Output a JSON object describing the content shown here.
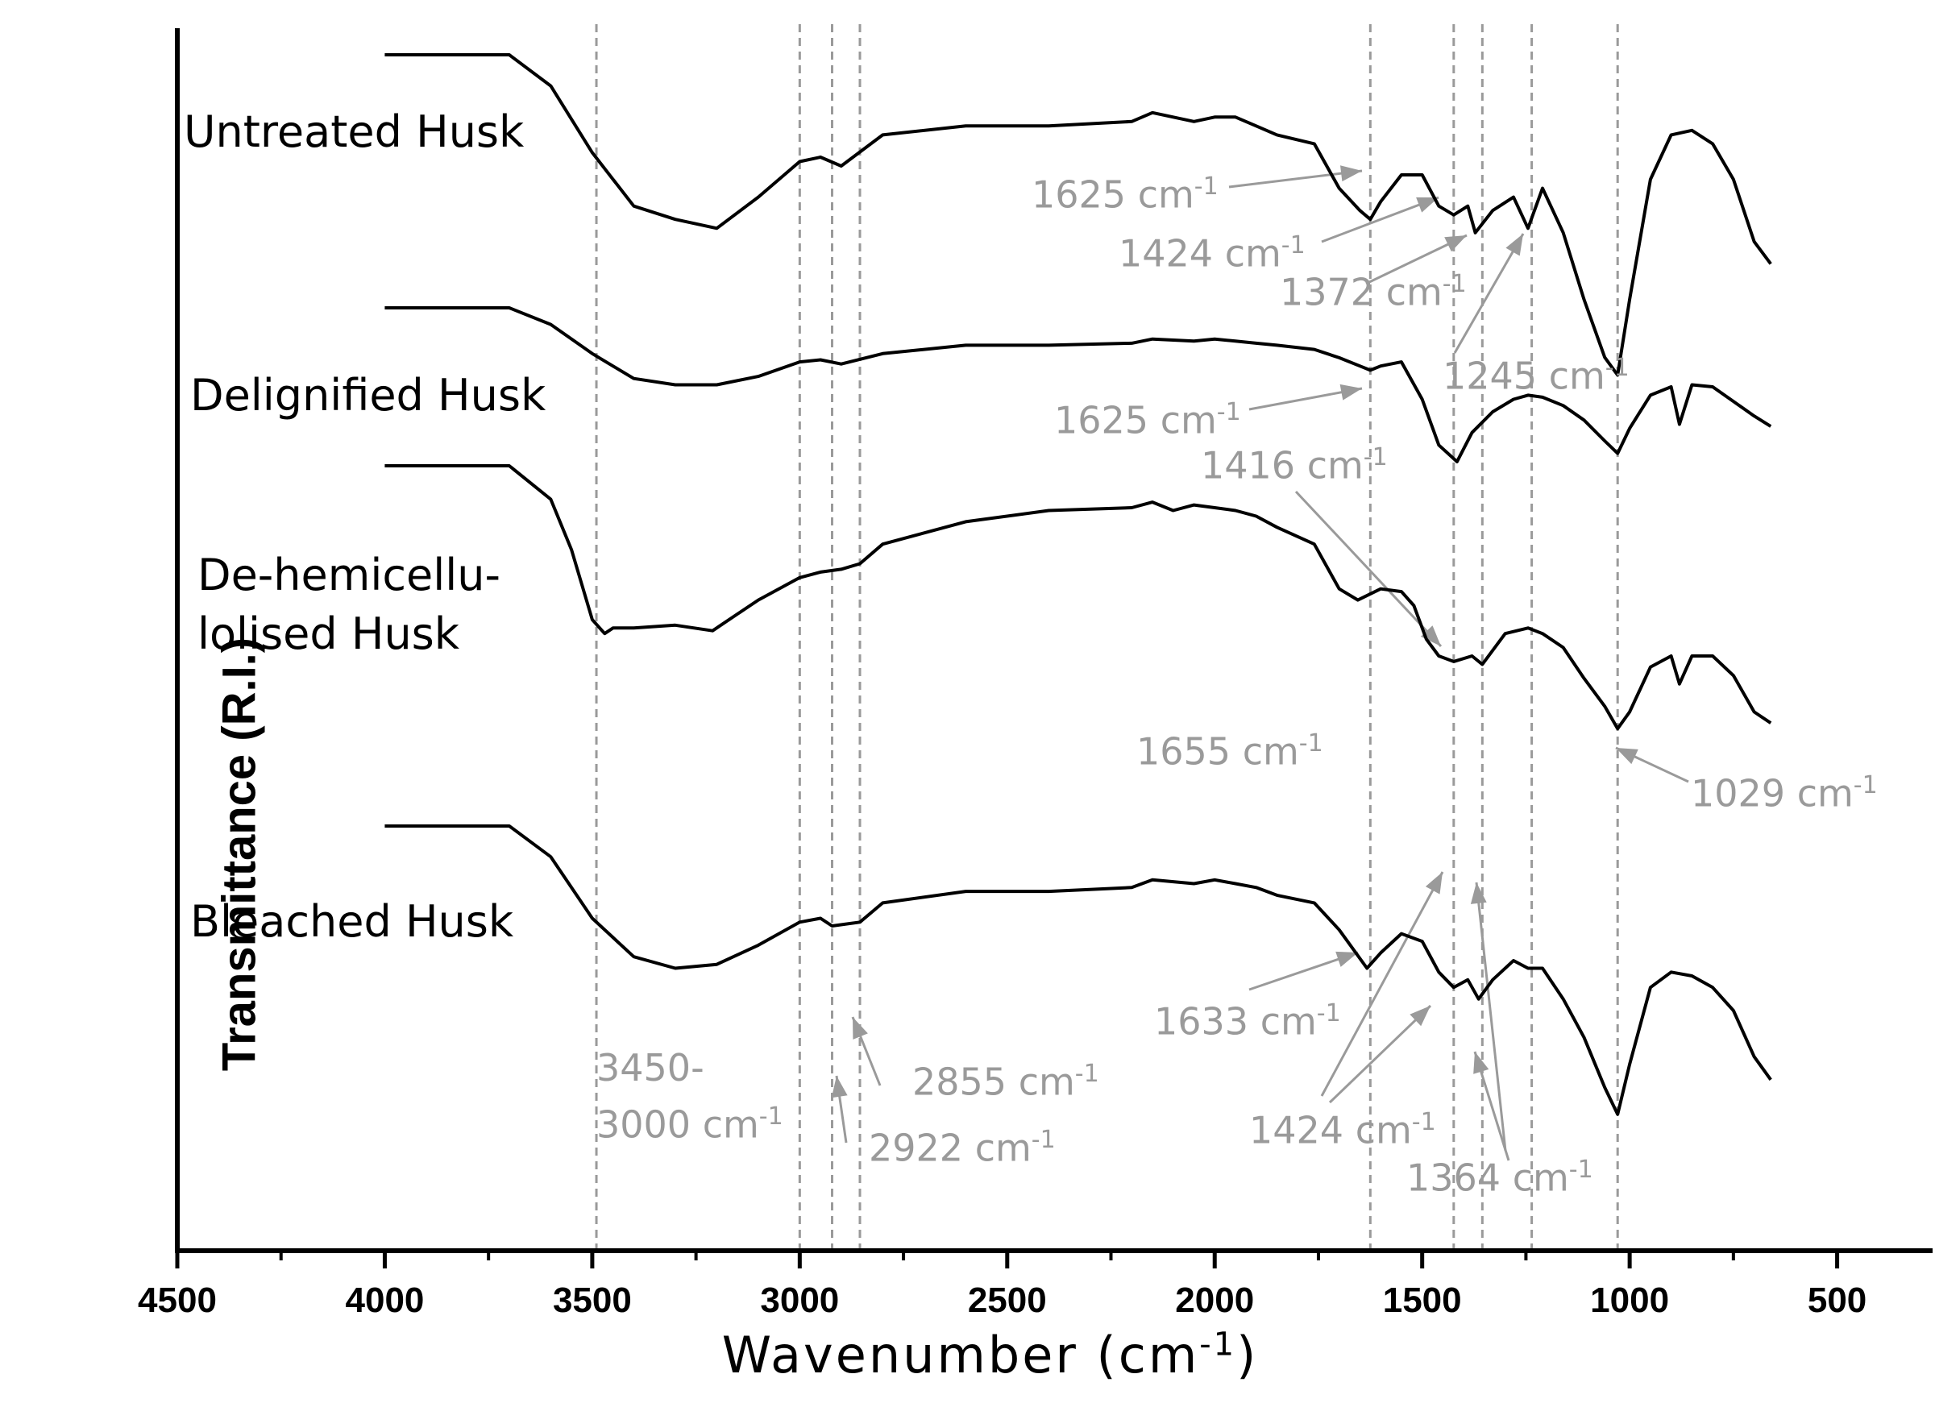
{
  "chart_data": {
    "type": "line",
    "title": "",
    "xlabel": "Wavenumber (cm",
    "xlabel_sup": "-1",
    "xlabel_close": ")",
    "ylabel": "Transmittance (R.I.)",
    "xlim": [
      4500,
      270
    ],
    "x_reversed": true,
    "x_ticks": [
      4500,
      4000,
      3500,
      3000,
      2500,
      2000,
      1500,
      1000,
      500
    ],
    "x_tick_labels": [
      "4500",
      "4000",
      "3500",
      "3000",
      "2500",
      "2000",
      "1500",
      "1000",
      "500"
    ],
    "y_ticks_shown": false,
    "grid": false,
    "legend": "none",
    "marker_lines": [
      3490,
      3000,
      2922,
      2855,
      1625,
      1424,
      1355,
      1236,
      1029
    ],
    "series": [
      {
        "name": "Untreated Husk",
        "x": [
          4000,
          3800,
          3700,
          3600,
          3500,
          3400,
          3300,
          3200,
          3100,
          3000,
          2950,
          2900,
          2800,
          2600,
          2400,
          2200,
          2150,
          2050,
          2000,
          1950,
          1900,
          1850,
          1760,
          1700,
          1650,
          1625,
          1600,
          1550,
          1500,
          1460,
          1424,
          1390,
          1372,
          1330,
          1280,
          1245,
          1210,
          1160,
          1110,
          1060,
          1029,
          1000,
          950,
          900,
          850,
          800,
          750,
          700,
          660
        ],
        "y": [
          100,
          100,
          100,
          93,
          78,
          66,
          63,
          61,
          68,
          76,
          77,
          75,
          82,
          84,
          84,
          85,
          87,
          85,
          86,
          86,
          84,
          82,
          80,
          70,
          65,
          63,
          67,
          73,
          73,
          66,
          64,
          66,
          60,
          65,
          68,
          61,
          70,
          60,
          45,
          32,
          28,
          45,
          72,
          82,
          83,
          80,
          72,
          58,
          53
        ]
      },
      {
        "name": "Delignified Husk",
        "x": [
          4000,
          3800,
          3700,
          3600,
          3500,
          3400,
          3300,
          3200,
          3100,
          3000,
          2950,
          2900,
          2800,
          2600,
          2400,
          2200,
          2150,
          2050,
          2000,
          1950,
          1900,
          1850,
          1760,
          1700,
          1650,
          1625,
          1600,
          1550,
          1500,
          1460,
          1416,
          1380,
          1330,
          1280,
          1245,
          1210,
          1160,
          1110,
          1060,
          1029,
          1000,
          950,
          900,
          880,
          850,
          800,
          750,
          700,
          660
        ],
        "y": [
          100,
          100,
          100,
          92,
          78,
          66,
          63,
          63,
          67,
          74,
          75,
          73,
          78,
          82,
          82,
          83,
          85,
          84,
          85,
          84,
          83,
          82,
          80,
          76,
          72,
          70,
          72,
          74,
          56,
          34,
          26,
          40,
          50,
          56,
          58,
          57,
          53,
          46,
          36,
          30,
          42,
          58,
          62,
          44,
          63,
          62,
          55,
          48,
          43
        ]
      },
      {
        "name": "De-hemicellulolised Husk",
        "x": [
          4000,
          3800,
          3700,
          3600,
          3550,
          3500,
          3470,
          3450,
          3400,
          3300,
          3210,
          3150,
          3100,
          3000,
          2950,
          2900,
          2855,
          2800,
          2600,
          2400,
          2200,
          2150,
          2100,
          2050,
          2000,
          1950,
          1900,
          1850,
          1760,
          1700,
          1655,
          1600,
          1550,
          1520,
          1490,
          1460,
          1424,
          1380,
          1355,
          1300,
          1245,
          1210,
          1160,
          1110,
          1060,
          1029,
          1000,
          950,
          900,
          880,
          850,
          800,
          750,
          700,
          660
        ],
        "y": [
          100,
          100,
          100,
          88,
          70,
          45,
          40,
          42,
          42,
          43,
          41,
          47,
          52,
          60,
          62,
          63,
          65,
          72,
          80,
          84,
          85,
          87,
          84,
          86,
          85,
          84,
          82,
          78,
          72,
          56,
          52,
          56,
          55,
          50,
          38,
          32,
          30,
          32,
          29,
          40,
          42,
          40,
          35,
          24,
          14,
          6,
          12,
          28,
          32,
          22,
          32,
          32,
          25,
          12,
          8
        ]
      },
      {
        "name": "Bleached Husk",
        "x": [
          4000,
          3800,
          3700,
          3600,
          3500,
          3400,
          3300,
          3200,
          3100,
          3000,
          2950,
          2922,
          2855,
          2800,
          2600,
          2400,
          2200,
          2150,
          2050,
          2000,
          1950,
          1900,
          1850,
          1760,
          1700,
          1633,
          1600,
          1550,
          1500,
          1460,
          1424,
          1390,
          1364,
          1330,
          1280,
          1245,
          1210,
          1160,
          1110,
          1060,
          1029,
          1000,
          950,
          900,
          850,
          800,
          750,
          700,
          660
        ],
        "y": [
          100,
          100,
          100,
          92,
          76,
          66,
          63,
          64,
          69,
          75,
          76,
          74,
          75,
          80,
          83,
          83,
          84,
          86,
          85,
          86,
          85,
          84,
          82,
          80,
          73,
          63,
          67,
          72,
          70,
          62,
          58,
          60,
          55,
          60,
          65,
          63,
          63,
          55,
          45,
          32,
          25,
          38,
          58,
          62,
          61,
          58,
          52,
          40,
          34
        ]
      }
    ],
    "annotations": [
      {
        "text": "1625 cm",
        "sup": "-1"
      },
      {
        "text": "1424 cm",
        "sup": "-1"
      },
      {
        "text": "1372 cm",
        "sup": "-1"
      },
      {
        "text": "1245 cm",
        "sup": "-1"
      },
      {
        "text": "1625 cm",
        "sup": "-1"
      },
      {
        "text": "1416 cm",
        "sup": "-1"
      },
      {
        "text": "1655 cm",
        "sup": "-1"
      },
      {
        "text": "1029 cm",
        "sup": "-1"
      },
      {
        "text": "1633 cm",
        "sup": "-1"
      },
      {
        "text": "3450-"
      },
      {
        "text": "3000 cm",
        "sup": "-1"
      },
      {
        "text": "2855 cm",
        "sup": "-1"
      },
      {
        "text": "2922 cm",
        "sup": "-1"
      },
      {
        "text": "1424 cm",
        "sup": "-1"
      },
      {
        "text": "1364 cm",
        "sup": "-1"
      }
    ],
    "series_labels": [
      "Untreated Husk",
      "Delignified Husk",
      "De-hemicellu-\nlolised Husk",
      "Bleached Husk"
    ]
  },
  "colors": {
    "line": "#000000",
    "annotation": "#9a9a9a",
    "marker_line": "#9a9a9a"
  }
}
